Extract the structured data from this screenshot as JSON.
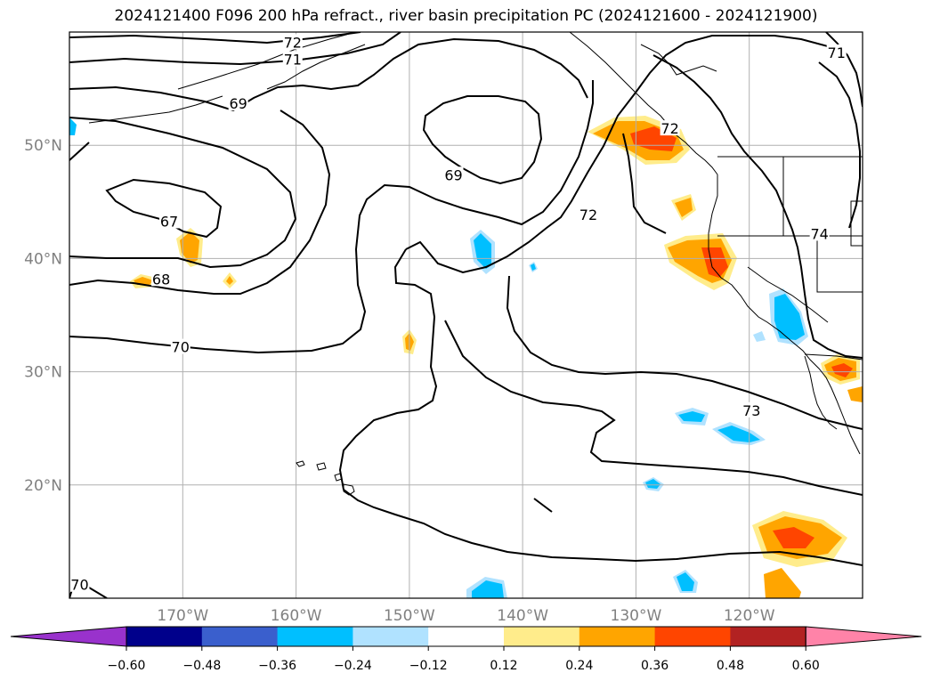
{
  "title": "2024121400 F096 200 hPa refract., river basin precipitation PC (2024121600 - 2024121900)",
  "chart_data": {
    "type": "map",
    "projection": "equirectangular",
    "lon_range": [
      -180,
      -110
    ],
    "lat_range": [
      10,
      60
    ],
    "gridlines": true,
    "lon_ticks": [
      {
        "value": -170,
        "label": "170°W"
      },
      {
        "value": -160,
        "label": "160°W"
      },
      {
        "value": -150,
        "label": "150°W"
      },
      {
        "value": -140,
        "label": "140°W"
      },
      {
        "value": -130,
        "label": "130°W"
      },
      {
        "value": -120,
        "label": "120°W"
      }
    ],
    "lat_ticks": [
      {
        "value": 50,
        "label": "50°N"
      },
      {
        "value": 40,
        "label": "40°N"
      },
      {
        "value": 30,
        "label": "30°N"
      },
      {
        "value": 20,
        "label": "20°N"
      }
    ],
    "contour_labels": [
      {
        "text": "72",
        "lon": -160.3,
        "lat": 59.1
      },
      {
        "text": "71",
        "lon": -160.3,
        "lat": 57.6
      },
      {
        "text": "71",
        "lon": -112.3,
        "lat": 58.2
      },
      {
        "text": "69",
        "lon": -165.1,
        "lat": 53.7
      },
      {
        "text": "69",
        "lon": -146.1,
        "lat": 47.4
      },
      {
        "text": "67",
        "lon": -171.2,
        "lat": 43.3
      },
      {
        "text": "68",
        "lon": -171.9,
        "lat": 38.2
      },
      {
        "text": "70",
        "lon": -170.2,
        "lat": 32.2
      },
      {
        "text": "72",
        "lon": -134.2,
        "lat": 43.9
      },
      {
        "text": "72",
        "lon": -127.0,
        "lat": 51.5
      },
      {
        "text": "73",
        "lon": -119.8,
        "lat": 26.6
      },
      {
        "text": "70",
        "lon": -179.1,
        "lat": 11.2
      },
      {
        "text": "74",
        "lon": -113.8,
        "lat": 42.2
      }
    ],
    "colorbar": {
      "colors": [
        "#9932cc",
        "#00008b",
        "#3a5fcd",
        "#00bfff",
        "#b0e2ff",
        "#ffffff",
        "#ffec8b",
        "#ffa500",
        "#ff4500",
        "#b22222",
        "#ff83a8"
      ],
      "tick_labels": [
        "−0.60",
        "−0.48",
        "−0.36",
        "−0.24",
        "−0.12",
        "0.12",
        "0.24",
        "0.36",
        "0.48",
        "0.60"
      ],
      "extend": "both"
    }
  }
}
